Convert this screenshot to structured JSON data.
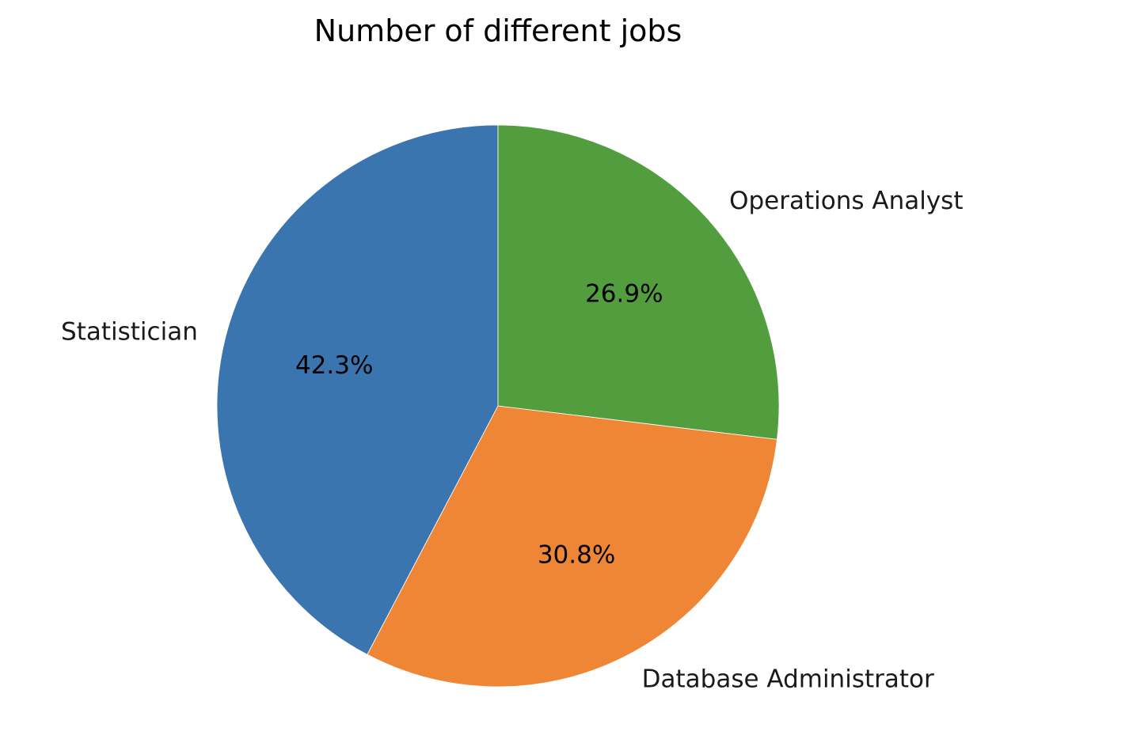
{
  "chart_data": {
    "type": "pie",
    "title": "Number of different jobs",
    "start_angle_deg": 90,
    "direction": "counterclockwise",
    "slices": [
      {
        "label": "Statistician",
        "value": 42.3,
        "pct_label": "42.3%",
        "color": "#3a75af"
      },
      {
        "label": "Database Administrator",
        "value": 30.8,
        "pct_label": "30.8%",
        "color": "#ef8636"
      },
      {
        "label": "Operations Analyst",
        "value": 26.9,
        "pct_label": "26.9%",
        "color": "#529e3e"
      }
    ]
  }
}
